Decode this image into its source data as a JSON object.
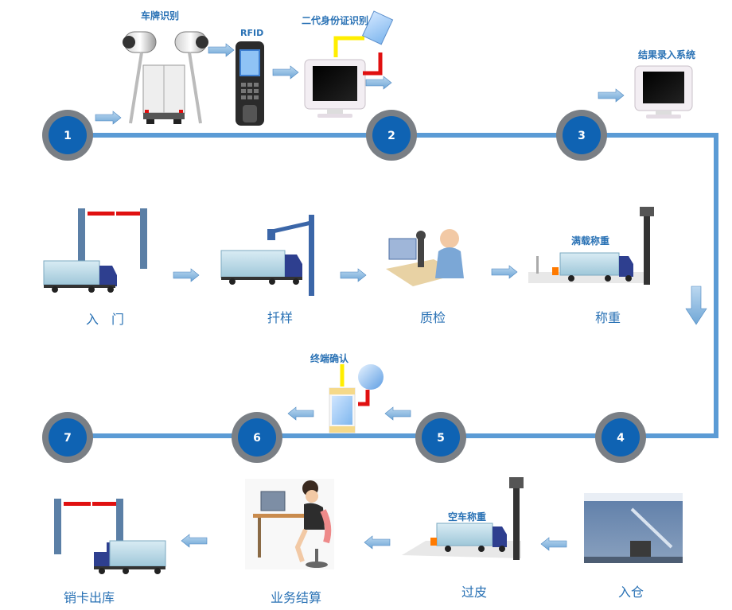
{
  "colors": {
    "line": "#5b9bd5",
    "node_ring": "#7a7f85",
    "node_fill": "#0f63b3",
    "node_text": "#ffffff",
    "label": "#2a72b5",
    "red": "#e01010",
    "yellow": "#ffee00"
  },
  "nodes": [
    "1",
    "2",
    "3",
    "4",
    "5",
    "6",
    "7"
  ],
  "top_labels": {
    "plate_recognition": "车牌识别",
    "rfid": "RFID",
    "id_card": "二代身份证识别",
    "result_entry": "结果录入系统",
    "full_weigh": "满载称重",
    "terminal_confirm": "终端确认",
    "empty_weigh": "空车称重"
  },
  "steps": {
    "enter_gate": "入　门",
    "sampling": "扦样",
    "quality": "质检",
    "weighing": "称重",
    "warehouse": "入仓",
    "tare": "过皮",
    "settlement": "业务结算",
    "exit": "销卡出库"
  },
  "icons": [
    "camera-icon",
    "truck-icon",
    "rfid-scanner-icon",
    "monitor-icon",
    "id-card-icon",
    "gate-icon",
    "sampler-icon",
    "microscope-icon",
    "scale-icon",
    "warehouse-icon",
    "operator-icon",
    "arrow-right-icon",
    "arrow-left-icon",
    "arrow-down-icon"
  ]
}
